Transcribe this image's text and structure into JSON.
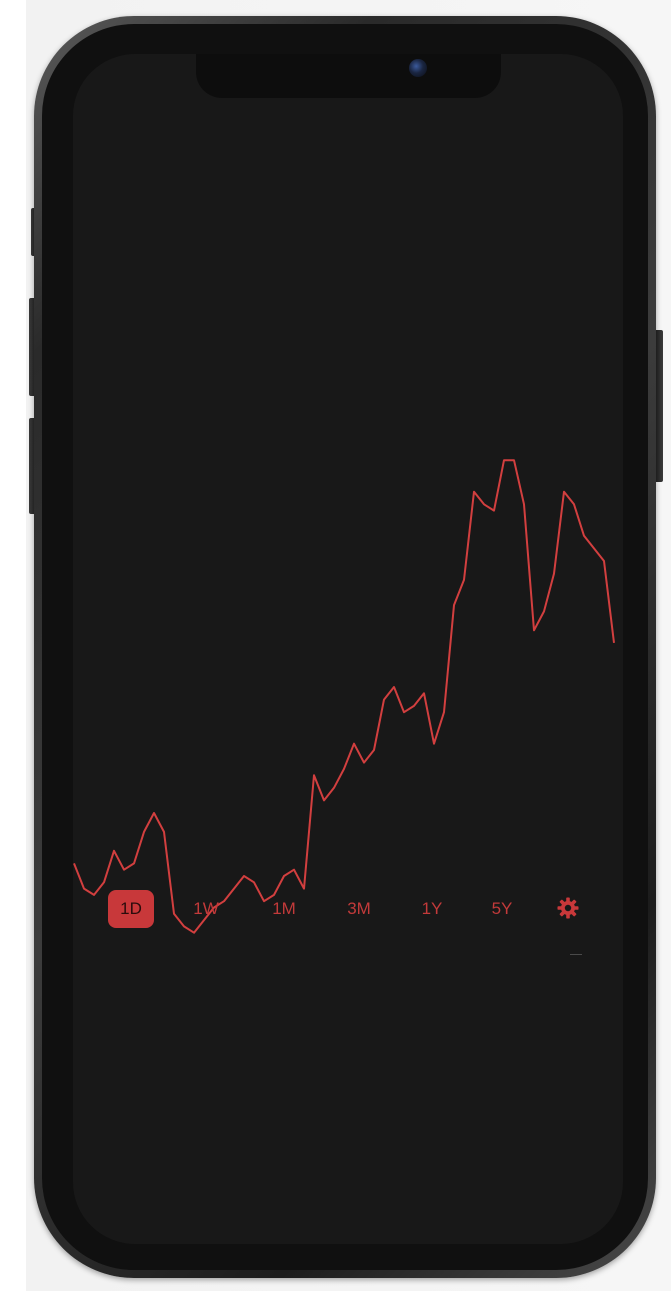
{
  "chart_data": {
    "type": "line",
    "title": "",
    "xlabel": "",
    "ylabel": "",
    "color": "#d23f3f",
    "grid": false,
    "ylim": [
      0,
      100
    ],
    "series": [
      {
        "values": [
          22,
          18,
          17,
          19,
          24,
          21,
          22,
          27,
          30,
          27,
          14,
          12,
          11,
          13,
          15,
          16,
          18,
          20,
          19,
          16,
          17,
          20,
          21,
          18,
          36,
          32,
          34,
          37,
          41,
          38,
          40,
          48,
          50,
          46,
          47,
          49,
          41,
          46,
          63,
          67,
          81,
          79,
          78,
          86,
          86,
          79,
          59,
          62,
          68,
          81,
          79,
          74,
          72,
          70,
          57
        ]
      }
    ]
  },
  "range_selector": {
    "tabs": [
      {
        "label": "1D",
        "active": true
      },
      {
        "label": "1W",
        "active": false
      },
      {
        "label": "1M",
        "active": false
      },
      {
        "label": "3M",
        "active": false
      },
      {
        "label": "1Y",
        "active": false
      },
      {
        "label": "5Y",
        "active": false
      }
    ],
    "settings_icon": "gear-icon",
    "accent_color": "#c8383a"
  }
}
